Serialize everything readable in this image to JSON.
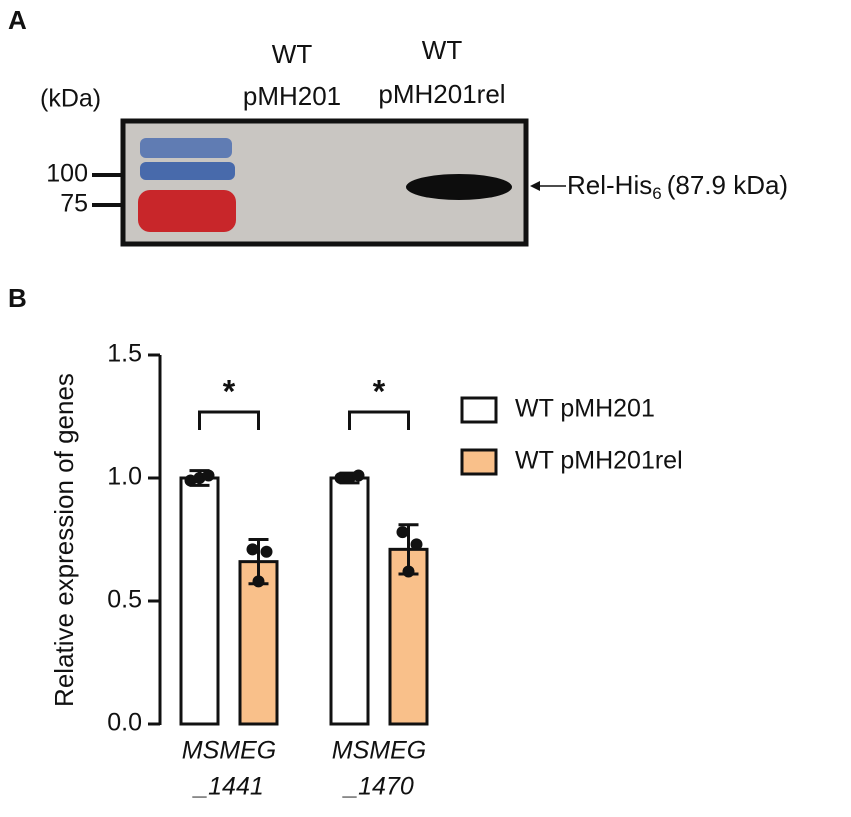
{
  "blot": {
    "panel": "A",
    "unit_label": "(kDa)",
    "markers": [
      "100",
      "75"
    ],
    "lanes": [
      [
        "WT",
        "pMH201"
      ],
      [
        "WT",
        "pMH201rel"
      ]
    ],
    "band_label": {
      "text": "Rel-His",
      "subscript": "6",
      "suffix": "(87.9 kDa)"
    }
  },
  "chart_data": {
    "type": "bar",
    "panel": "B",
    "y_label": "Relative expression of genes",
    "categories": [
      [
        "MSMEG",
        "_1441"
      ],
      [
        "MSMEG",
        "_1470"
      ]
    ],
    "series": [
      {
        "name": "WT pMH201",
        "color": "#ffffff",
        "values": [
          1.0,
          1.0
        ],
        "errors": [
          0.03,
          0.02
        ],
        "points": [
          [
            0.99,
            1.0,
            1.01
          ],
          [
            1.0,
            1.0,
            1.01
          ]
        ]
      },
      {
        "name": "WT pMH201rel",
        "color": "#f9c08a",
        "values": [
          0.66,
          0.71
        ],
        "errors": [
          0.09,
          0.1
        ],
        "points": [
          [
            0.71,
            0.7,
            0.58
          ],
          [
            0.78,
            0.73,
            0.62
          ]
        ]
      }
    ],
    "annotations": [
      "*",
      "*"
    ],
    "ylim": [
      0,
      1.5
    ],
    "yticks": [
      {
        "value": 0,
        "label": "0.0"
      },
      0.5,
      {
        "value": 1,
        "label": "1.0"
      },
      1.5
    ],
    "legend": "right"
  }
}
